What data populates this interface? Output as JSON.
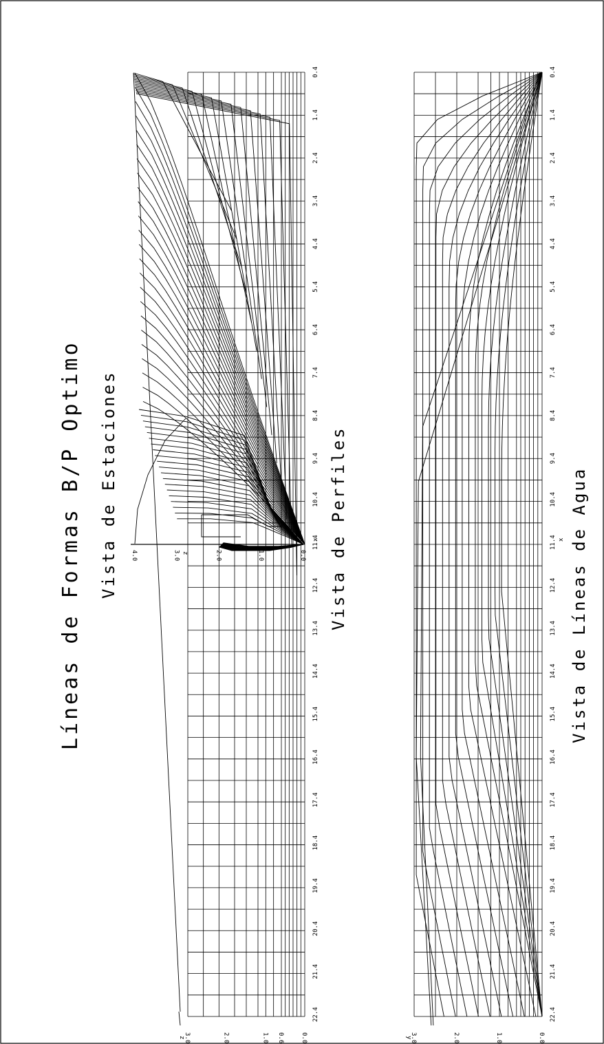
{
  "title": "Líneas de Formas B/P Optimo",
  "views": {
    "stations": "Vista de Estaciones",
    "profiles": "Vista de Perfiles",
    "waterlines": "Vista de Líneas de Agua"
  },
  "axes": {
    "x_label": "x",
    "z_label": "z",
    "y_label": "y",
    "x_ticks": [
      "0.4",
      "1.4",
      "2.4",
      "3.4",
      "4.4",
      "5.4",
      "6.4",
      "7.4",
      "8.4",
      "9.4",
      "10.4",
      "11.4",
      "12.4",
      "13.4",
      "14.4",
      "15.4",
      "16.4",
      "17.4",
      "18.4",
      "19.4",
      "20.4",
      "21.4",
      "22.4"
    ],
    "profile_z_ticks": [
      "0.0",
      "0.6",
      "1.0",
      "2.0",
      "3.0"
    ],
    "station_z_ticks": [
      "0.0",
      "1.0",
      "2.0",
      "3.0",
      "4.0"
    ],
    "waterline_y_ticks": [
      "0.0",
      "1.0",
      "2.0",
      "3.0"
    ]
  },
  "chart_data": [
    {
      "type": "line",
      "name": "profile",
      "x_range": [
        0.4,
        22.4
      ],
      "z_range": [
        0,
        3.0
      ],
      "keel_z": 0,
      "deck_z_bow": 3.0,
      "deck_z_stern": 3.0
    },
    {
      "type": "line",
      "name": "waterlines",
      "x_range": [
        0.4,
        22.4
      ],
      "y_range": [
        0,
        3.0
      ]
    }
  ]
}
